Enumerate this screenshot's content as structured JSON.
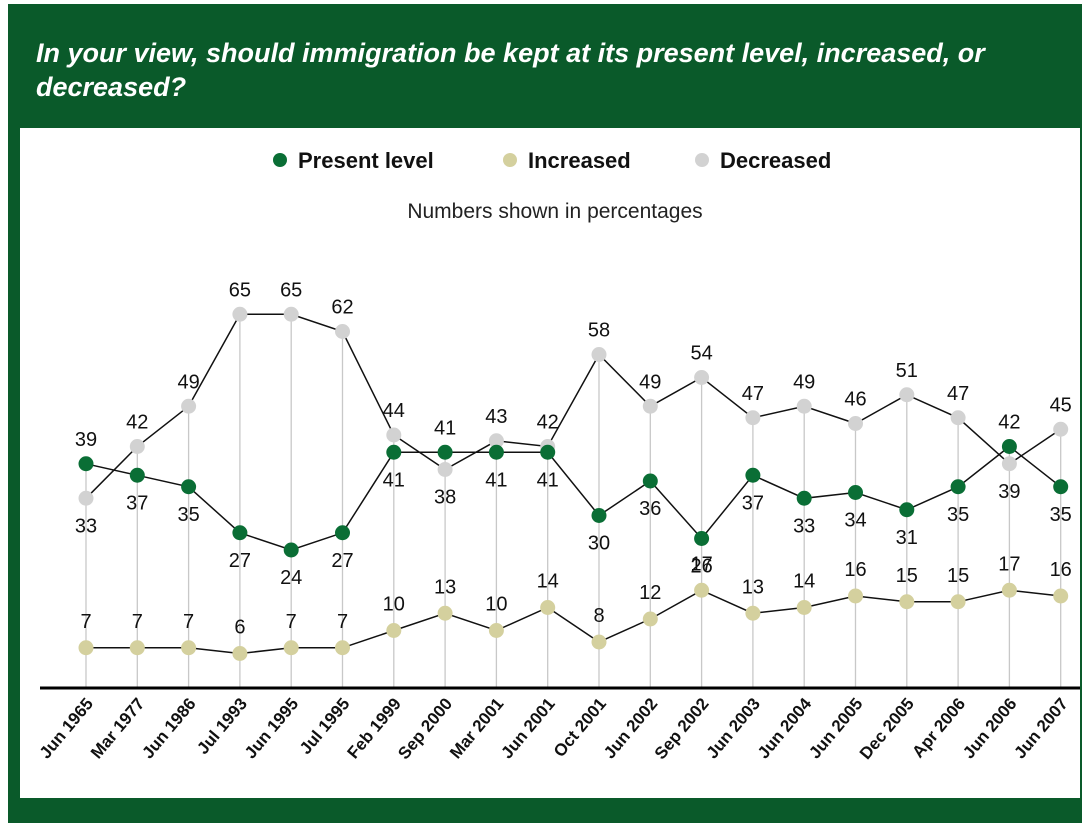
{
  "title": "In your view, should immigration be kept at its present level, increased, or decreased?",
  "colors": {
    "frame": "#0a5a2a",
    "present": "#0a6e35",
    "increased": "#d4d09e",
    "decreased": "#d2d2d2"
  },
  "chart_data": {
    "type": "line",
    "subtitle": "Numbers shown in percentages",
    "categories": [
      "Jun 1965",
      "Mar 1977",
      "Jun 1986",
      "Jul 1993",
      "Jun 1995",
      "Jul 1995",
      "Feb 1999",
      "Sep 2000",
      "Mar 2001",
      "Jun 2001",
      "Oct 2001",
      "Jun 2002",
      "Sep 2002",
      "Jun 2003",
      "Jun 2004",
      "Jun 2005",
      "Dec 2005",
      "Apr 2006",
      "Jun 2006",
      "Jun 2007"
    ],
    "series": [
      {
        "name": "Present level",
        "color": "#0a6e35",
        "values": [
          39,
          37,
          35,
          27,
          24,
          27,
          41,
          41,
          41,
          41,
          30,
          36,
          26,
          37,
          33,
          34,
          31,
          35,
          42,
          35
        ]
      },
      {
        "name": "Increased",
        "color": "#d4d09e",
        "values": [
          7,
          7,
          7,
          6,
          7,
          7,
          10,
          13,
          10,
          14,
          8,
          12,
          17,
          13,
          14,
          16,
          15,
          15,
          17,
          16
        ]
      },
      {
        "name": "Decreased",
        "color": "#d2d2d2",
        "values": [
          33,
          42,
          49,
          65,
          65,
          62,
          44,
          38,
          43,
          42,
          58,
          49,
          54,
          47,
          49,
          46,
          51,
          47,
          39,
          45
        ]
      }
    ],
    "legend_position": "top",
    "grid": false
  }
}
